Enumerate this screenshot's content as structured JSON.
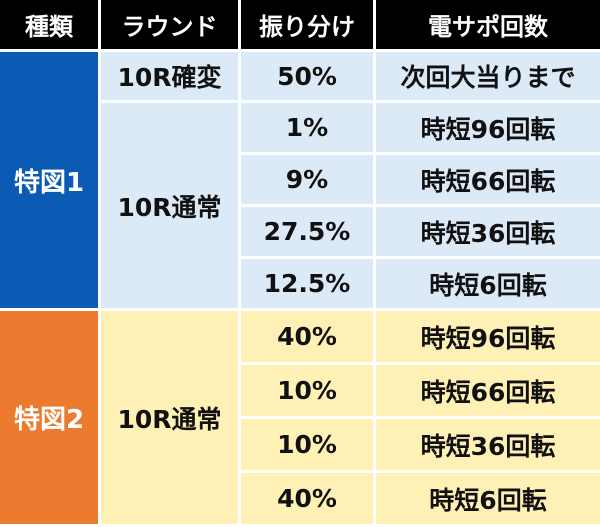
{
  "header": {
    "type": "種類",
    "round": "ラウンド",
    "allocation": "振り分け",
    "support_count": "電サポ回数"
  },
  "groups": [
    {
      "type": "特図1",
      "blocks": [
        {
          "round": "10R確変",
          "rows": [
            {
              "pct": "50%",
              "support": "次回大当りまで"
            }
          ]
        },
        {
          "round": "10R通常",
          "rows": [
            {
              "pct": "1%",
              "support": "時短96回転"
            },
            {
              "pct": "9%",
              "support": "時短66回転"
            },
            {
              "pct": "27.5%",
              "support": "時短36回転"
            },
            {
              "pct": "12.5%",
              "support": "時短6回転"
            }
          ]
        }
      ]
    },
    {
      "type": "特図2",
      "blocks": [
        {
          "round": "10R通常",
          "rows": [
            {
              "pct": "40%",
              "support": "時短96回転"
            },
            {
              "pct": "10%",
              "support": "時短66回転"
            },
            {
              "pct": "10%",
              "support": "時短36回転"
            },
            {
              "pct": "40%",
              "support": "時短6回転"
            }
          ]
        }
      ]
    }
  ],
  "colors": {
    "header_bg": "#000000",
    "type1_bg": "#0b5bb5",
    "type2_bg": "#ec7a2f",
    "type1_cells": "#dce9f6",
    "type2_cells": "#fff1b6"
  }
}
